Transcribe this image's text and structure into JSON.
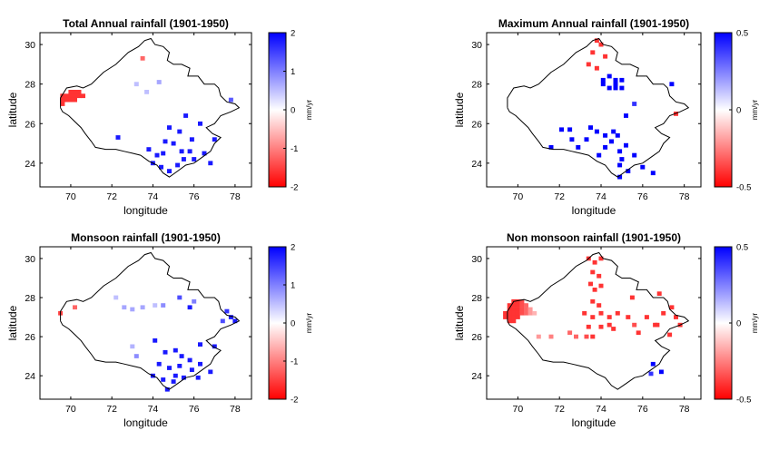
{
  "chart_data": [
    {
      "type": "heatmap",
      "title": "Total Annual rainfall (1901-1950)",
      "xlabel": "longitude",
      "ylabel": "latitude",
      "xlim": [
        68.5,
        78.8
      ],
      "ylim": [
        22.8,
        30.6
      ],
      "xticks": [
        "70",
        "72",
        "74",
        "76",
        "78"
      ],
      "yticks": [
        "24",
        "26",
        "28",
        "30"
      ],
      "colorbar": {
        "ticks": [
          "2",
          "1",
          "0",
          "-1",
          "-2"
        ],
        "min": -2,
        "max": 2,
        "unit": "mm/yr",
        "colors": {
          "high": "#0000ff",
          "mid": "#ffffff",
          "low": "#ff0000"
        }
      },
      "cells": [
        [
          69.6,
          27.4,
          -1.6
        ],
        [
          69.6,
          27.2,
          -1.6
        ],
        [
          69.6,
          27.0,
          -1.6
        ],
        [
          69.8,
          27.4,
          -1.6
        ],
        [
          69.8,
          27.2,
          -1.6
        ],
        [
          70.0,
          27.6,
          -1.6
        ],
        [
          70.0,
          27.4,
          -1.6
        ],
        [
          70.0,
          27.2,
          -1.6
        ],
        [
          70.2,
          27.6,
          -1.6
        ],
        [
          70.2,
          27.4,
          -1.6
        ],
        [
          70.2,
          27.2,
          -1.6
        ],
        [
          70.4,
          27.6,
          -1.6
        ],
        [
          70.4,
          27.4,
          -1.6
        ],
        [
          70.6,
          27.4,
          -1.6
        ],
        [
          73.5,
          29.3,
          -1.2
        ],
        [
          73.2,
          28.0,
          0.5
        ],
        [
          73.7,
          27.6,
          0.5
        ],
        [
          74.3,
          28.1,
          0.7
        ],
        [
          77.8,
          27.2,
          1.3
        ],
        [
          72.3,
          25.3,
          1.8
        ],
        [
          73.8,
          24.7,
          1.8
        ],
        [
          74.8,
          25.8,
          1.8
        ],
        [
          75.3,
          25.6,
          1.8
        ],
        [
          75.6,
          26.4,
          1.8
        ],
        [
          76.3,
          26.0,
          1.8
        ],
        [
          75.0,
          25.0,
          1.8
        ],
        [
          74.5,
          24.5,
          1.8
        ],
        [
          76.5,
          24.5,
          1.8
        ],
        [
          77.0,
          25.2,
          1.8
        ],
        [
          76.8,
          24.0,
          1.8
        ],
        [
          74.0,
          24.0,
          1.8
        ],
        [
          75.5,
          24.2,
          1.8
        ],
        [
          74.8,
          23.6,
          1.8
        ],
        [
          75.2,
          23.9,
          1.8
        ],
        [
          76.0,
          24.2,
          1.8
        ],
        [
          74.4,
          23.8,
          1.8
        ],
        [
          75.8,
          24.6,
          1.8
        ],
        [
          74.6,
          25.1,
          1.8
        ],
        [
          75.9,
          25.2,
          1.8
        ],
        [
          74.2,
          24.4,
          1.8
        ],
        [
          75.4,
          24.6,
          1.8
        ]
      ]
    },
    {
      "type": "heatmap",
      "title": "Maximum Annual rainfall (1901-1950)",
      "xlabel": "longitude",
      "ylabel": "latitude",
      "xlim": [
        68.5,
        78.8
      ],
      "ylim": [
        22.8,
        30.6
      ],
      "xticks": [
        "70",
        "72",
        "74",
        "76",
        "78"
      ],
      "yticks": [
        "24",
        "26",
        "28",
        "30"
      ],
      "colorbar": {
        "ticks": [
          "0.5",
          "0",
          "-0.5"
        ],
        "min": -0.5,
        "max": 0.5,
        "unit": "mm/yr",
        "colors": {
          "high": "#0000ff",
          "mid": "#ffffff",
          "low": "#ff0000"
        }
      },
      "cells": [
        [
          73.8,
          30.2,
          -0.4
        ],
        [
          74.0,
          30.0,
          -0.4
        ],
        [
          73.6,
          29.6,
          -0.4
        ],
        [
          74.2,
          29.4,
          -0.4
        ],
        [
          73.4,
          29.0,
          -0.4
        ],
        [
          73.8,
          28.8,
          -0.4
        ],
        [
          74.1,
          28.2,
          0.5
        ],
        [
          74.4,
          28.4,
          0.5
        ],
        [
          74.7,
          28.2,
          0.5
        ],
        [
          75.0,
          28.2,
          0.5
        ],
        [
          74.1,
          28.0,
          0.5
        ],
        [
          74.4,
          27.8,
          0.5
        ],
        [
          74.7,
          28.0,
          0.5
        ],
        [
          75.0,
          27.8,
          0.5
        ],
        [
          74.7,
          27.8,
          0.5
        ],
        [
          77.4,
          28.0,
          0.5
        ],
        [
          75.6,
          27.0,
          0.4
        ],
        [
          75.2,
          26.4,
          0.5
        ],
        [
          77.6,
          26.5,
          -0.4
        ],
        [
          72.1,
          25.7,
          0.5
        ],
        [
          72.5,
          25.7,
          0.5
        ],
        [
          73.5,
          25.8,
          0.5
        ],
        [
          73.8,
          25.6,
          0.5
        ],
        [
          74.2,
          25.4,
          0.5
        ],
        [
          74.6,
          25.6,
          0.5
        ],
        [
          74.8,
          25.4,
          0.5
        ],
        [
          74.5,
          25.1,
          0.5
        ],
        [
          73.3,
          25.2,
          0.5
        ],
        [
          72.9,
          24.8,
          0.5
        ],
        [
          72.6,
          25.2,
          0.5
        ],
        [
          74.2,
          24.8,
          0.5
        ],
        [
          74.9,
          24.6,
          0.5
        ],
        [
          75.2,
          24.9,
          0.5
        ],
        [
          75.6,
          24.4,
          0.5
        ],
        [
          75.0,
          24.2,
          0.5
        ],
        [
          74.9,
          23.9,
          0.5
        ],
        [
          75.3,
          23.6,
          0.5
        ],
        [
          74.9,
          23.3,
          0.5
        ],
        [
          76.0,
          23.8,
          0.5
        ],
        [
          76.5,
          23.5,
          0.5
        ],
        [
          71.6,
          24.8,
          0.5
        ],
        [
          73.9,
          24.4,
          0.5
        ]
      ]
    },
    {
      "type": "heatmap",
      "title": "Monsoon rainfall (1901-1950)",
      "xlabel": "longitude",
      "ylabel": "latitude",
      "xlim": [
        68.5,
        78.8
      ],
      "ylim": [
        22.8,
        30.6
      ],
      "xticks": [
        "70",
        "72",
        "74",
        "76",
        "78"
      ],
      "yticks": [
        "24",
        "26",
        "28",
        "30"
      ],
      "colorbar": {
        "ticks": [
          "2",
          "1",
          "0",
          "-1",
          "-2"
        ],
        "min": -2,
        "max": 2,
        "unit": "mm/yr",
        "colors": {
          "high": "#0000ff",
          "mid": "#ffffff",
          "low": "#ff0000"
        }
      },
      "cells": [
        [
          69.5,
          27.2,
          -1.5
        ],
        [
          70.2,
          27.5,
          -1.2
        ],
        [
          72.2,
          28.0,
          0.5
        ],
        [
          72.6,
          27.5,
          0.7
        ],
        [
          73.0,
          27.4,
          0.7
        ],
        [
          73.5,
          27.5,
          0.7
        ],
        [
          74.1,
          27.6,
          0.5
        ],
        [
          75.3,
          28.0,
          1.4
        ],
        [
          74.5,
          27.6,
          0.9
        ],
        [
          76.0,
          27.8,
          1.0
        ],
        [
          75.8,
          27.5,
          1.8
        ],
        [
          77.6,
          27.3,
          1.6
        ],
        [
          77.8,
          27.0,
          1.8
        ],
        [
          78.0,
          26.8,
          1.8
        ],
        [
          77.4,
          26.8,
          1.4
        ],
        [
          73.0,
          25.5,
          0.6
        ],
        [
          73.2,
          25.0,
          0.9
        ],
        [
          74.1,
          25.8,
          1.8
        ],
        [
          76.3,
          25.6,
          1.8
        ],
        [
          77.0,
          25.5,
          1.8
        ],
        [
          74.6,
          25.2,
          1.8
        ],
        [
          75.1,
          25.3,
          1.8
        ],
        [
          75.4,
          25.0,
          1.8
        ],
        [
          74.3,
          24.6,
          1.8
        ],
        [
          74.8,
          24.4,
          1.8
        ],
        [
          75.3,
          24.5,
          1.8
        ],
        [
          75.8,
          24.8,
          1.8
        ],
        [
          76.3,
          24.6,
          1.8
        ],
        [
          76.8,
          24.2,
          1.8
        ],
        [
          74.0,
          24.0,
          1.8
        ],
        [
          74.5,
          23.8,
          1.8
        ],
        [
          75.0,
          23.7,
          1.8
        ],
        [
          75.5,
          23.9,
          1.8
        ],
        [
          74.7,
          23.3,
          1.8
        ],
        [
          75.9,
          24.3,
          1.8
        ],
        [
          76.2,
          23.9,
          1.8
        ],
        [
          75.1,
          24.0,
          1.8
        ]
      ]
    },
    {
      "type": "heatmap",
      "title": "Non monsoon rainfall (1901-1950)",
      "xlabel": "longitude",
      "ylabel": "latitude",
      "xlim": [
        68.5,
        78.8
      ],
      "ylim": [
        22.8,
        30.6
      ],
      "xticks": [
        "70",
        "72",
        "74",
        "76",
        "78"
      ],
      "yticks": [
        "24",
        "26",
        "28",
        "30"
      ],
      "colorbar": {
        "ticks": [
          "0.5",
          "0",
          "-0.5"
        ],
        "min": -0.5,
        "max": 0.5,
        "unit": "mm/yr",
        "colors": {
          "high": "#0000ff",
          "mid": "#ffffff",
          "low": "#ff0000"
        }
      },
      "cells": [
        [
          69.4,
          27.2,
          -0.4
        ],
        [
          69.4,
          27.0,
          -0.4
        ],
        [
          69.6,
          27.6,
          -0.4
        ],
        [
          69.6,
          27.4,
          -0.4
        ],
        [
          69.6,
          27.2,
          -0.4
        ],
        [
          69.6,
          27.0,
          -0.4
        ],
        [
          69.6,
          26.8,
          -0.4
        ],
        [
          69.8,
          27.8,
          -0.4
        ],
        [
          69.8,
          27.6,
          -0.4
        ],
        [
          69.8,
          27.4,
          -0.4
        ],
        [
          69.8,
          27.2,
          -0.4
        ],
        [
          69.8,
          27.0,
          -0.4
        ],
        [
          69.8,
          26.8,
          -0.4
        ],
        [
          70.0,
          27.8,
          -0.4
        ],
        [
          70.0,
          27.6,
          -0.4
        ],
        [
          70.0,
          27.4,
          -0.4
        ],
        [
          70.0,
          27.2,
          -0.4
        ],
        [
          70.0,
          27.0,
          -0.4
        ],
        [
          70.2,
          27.8,
          -0.35
        ],
        [
          70.2,
          27.6,
          -0.35
        ],
        [
          70.2,
          27.4,
          -0.35
        ],
        [
          70.2,
          27.2,
          -0.35
        ],
        [
          70.4,
          27.6,
          -0.3
        ],
        [
          70.4,
          27.4,
          -0.3
        ],
        [
          70.4,
          27.2,
          -0.3
        ],
        [
          70.6,
          27.4,
          -0.2
        ],
        [
          70.6,
          27.2,
          -0.2
        ],
        [
          70.8,
          27.2,
          -0.15
        ],
        [
          73.4,
          30.0,
          -0.4
        ],
        [
          73.7,
          29.8,
          -0.4
        ],
        [
          74.0,
          30.0,
          -0.4
        ],
        [
          73.6,
          29.3,
          -0.4
        ],
        [
          73.9,
          29.1,
          -0.4
        ],
        [
          73.5,
          28.7,
          -0.4
        ],
        [
          74.0,
          28.6,
          -0.4
        ],
        [
          73.7,
          28.4,
          -0.4
        ],
        [
          73.6,
          27.8,
          -0.4
        ],
        [
          73.9,
          27.6,
          -0.4
        ],
        [
          73.2,
          27.2,
          -0.4
        ],
        [
          73.6,
          27.0,
          -0.4
        ],
        [
          74.0,
          27.2,
          -0.4
        ],
        [
          74.4,
          27.0,
          -0.4
        ],
        [
          74.8,
          27.2,
          -0.4
        ],
        [
          75.3,
          27.0,
          -0.4
        ],
        [
          74.4,
          26.6,
          -0.4
        ],
        [
          74.0,
          26.5,
          -0.4
        ],
        [
          73.4,
          26.5,
          -0.4
        ],
        [
          75.6,
          26.6,
          -0.35
        ],
        [
          74.6,
          26.4,
          -0.4
        ],
        [
          75.5,
          28.0,
          -0.4
        ],
        [
          76.2,
          27.0,
          -0.4
        ],
        [
          76.6,
          26.6,
          -0.4
        ],
        [
          77.0,
          27.2,
          -0.4
        ],
        [
          76.8,
          28.2,
          -0.4
        ],
        [
          77.4,
          27.5,
          -0.4
        ],
        [
          77.6,
          27.0,
          -0.4
        ],
        [
          77.8,
          26.6,
          -0.4
        ],
        [
          77.3,
          26.1,
          -0.4
        ],
        [
          76.7,
          26.6,
          -0.4
        ],
        [
          75.8,
          26.2,
          -0.4
        ],
        [
          72.5,
          26.2,
          -0.3
        ],
        [
          72.8,
          26.0,
          -0.3
        ],
        [
          73.3,
          26.0,
          -0.35
        ],
        [
          73.6,
          26.0,
          -0.4
        ],
        [
          71.0,
          26.0,
          -0.2
        ],
        [
          71.6,
          26.0,
          -0.25
        ],
        [
          76.5,
          24.6,
          0.5
        ],
        [
          76.9,
          24.2,
          0.5
        ],
        [
          76.4,
          24.1,
          0.4
        ]
      ]
    }
  ]
}
